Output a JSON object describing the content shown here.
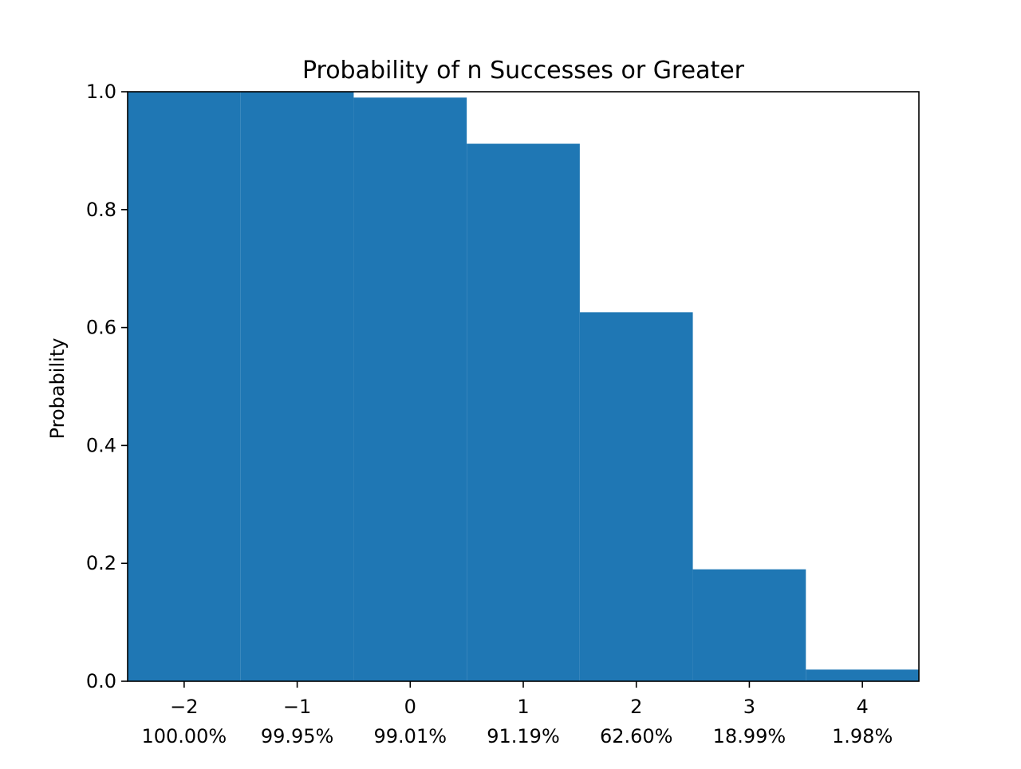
{
  "chart_data": {
    "type": "bar",
    "title": "Probability of n Successes or Greater",
    "xlabel": "",
    "ylabel": "Probability",
    "x": [
      -2,
      -1,
      0,
      1,
      2,
      3,
      4
    ],
    "x_tick_labels": [
      "−2",
      "−1",
      "0",
      "1",
      "2",
      "3",
      "4"
    ],
    "percent_labels": [
      "100.00%",
      "99.95%",
      "99.01%",
      "91.19%",
      "62.60%",
      "18.99%",
      "1.98%"
    ],
    "values": [
      1.0,
      0.9995,
      0.9901,
      0.9119,
      0.626,
      0.1899,
      0.0198
    ],
    "xlim": [
      -2.5,
      4.5
    ],
    "ylim": [
      0,
      1.0
    ],
    "y_ticks": [
      0.0,
      0.2,
      0.4,
      0.6,
      0.8,
      1.0
    ],
    "y_tick_labels": [
      "0.0",
      "0.2",
      "0.4",
      "0.6",
      "0.8",
      "1.0"
    ],
    "bar_color": "#1f77b4",
    "grid": false,
    "legend": "none"
  }
}
